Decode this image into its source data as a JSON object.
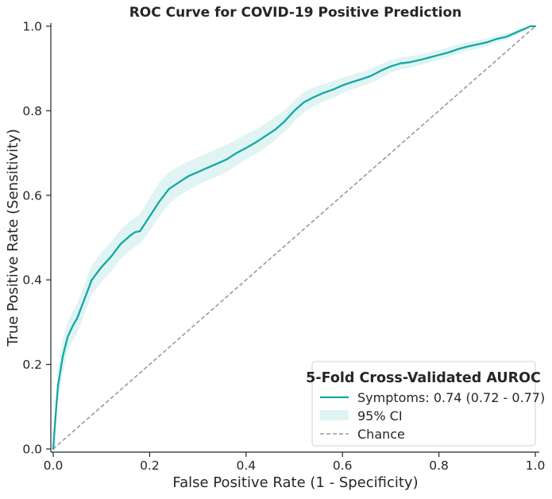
{
  "chart_data": {
    "type": "line",
    "title": "ROC Curve for COVID-19 Positive Prediction",
    "xlabel": "False Positive Rate (1 - Specificity)",
    "ylabel": "True Positive Rate (Sensitivity)",
    "xlim": [
      0.0,
      1.0
    ],
    "ylim": [
      0.0,
      1.0
    ],
    "xticks": [
      "0.0",
      "0.2",
      "0.4",
      "0.6",
      "0.8",
      "1.0"
    ],
    "yticks": [
      "0.0",
      "0.2",
      "0.4",
      "0.6",
      "0.8",
      "1.0"
    ],
    "grid": false,
    "legend": {
      "title": "5-Fold Cross-Validated AUROC",
      "placement": "lower-right",
      "entries": [
        "Symptoms: 0.74 (0.72 - 0.77)",
        "95% CI",
        "Chance"
      ]
    },
    "colors": {
      "roc_line": "#13a8a4",
      "ci_band": "#13a8a4",
      "chance_line": "#999999"
    },
    "series": [
      {
        "name": "Symptoms: 0.74 (0.72 - 0.77)",
        "x": [
          0.0,
          0.005,
          0.01,
          0.02,
          0.03,
          0.04,
          0.05,
          0.06,
          0.07,
          0.08,
          0.1,
          0.12,
          0.14,
          0.16,
          0.17,
          0.18,
          0.2,
          0.22,
          0.24,
          0.26,
          0.28,
          0.3,
          0.32,
          0.34,
          0.36,
          0.38,
          0.4,
          0.42,
          0.44,
          0.46,
          0.48,
          0.5,
          0.52,
          0.54,
          0.56,
          0.58,
          0.6,
          0.62,
          0.64,
          0.66,
          0.68,
          0.7,
          0.72,
          0.74,
          0.76,
          0.78,
          0.8,
          0.82,
          0.84,
          0.86,
          0.88,
          0.9,
          0.92,
          0.94,
          0.96,
          0.98,
          0.99,
          1.0
        ],
        "y": [
          0.0,
          0.08,
          0.15,
          0.22,
          0.265,
          0.29,
          0.31,
          0.34,
          0.37,
          0.4,
          0.43,
          0.455,
          0.485,
          0.505,
          0.513,
          0.515,
          0.55,
          0.585,
          0.615,
          0.63,
          0.645,
          0.655,
          0.665,
          0.675,
          0.685,
          0.7,
          0.712,
          0.725,
          0.74,
          0.755,
          0.775,
          0.8,
          0.82,
          0.832,
          0.842,
          0.85,
          0.86,
          0.868,
          0.875,
          0.883,
          0.895,
          0.905,
          0.912,
          0.915,
          0.92,
          0.926,
          0.932,
          0.938,
          0.946,
          0.952,
          0.957,
          0.962,
          0.97,
          0.975,
          0.985,
          0.995,
          1.0,
          1.0
        ]
      }
    ],
    "ci_band": {
      "name": "95% CI",
      "x": [
        0.0,
        0.005,
        0.01,
        0.02,
        0.03,
        0.04,
        0.05,
        0.06,
        0.07,
        0.08,
        0.1,
        0.12,
        0.14,
        0.16,
        0.17,
        0.18,
        0.2,
        0.22,
        0.24,
        0.26,
        0.28,
        0.3,
        0.32,
        0.34,
        0.36,
        0.38,
        0.4,
        0.42,
        0.44,
        0.46,
        0.48,
        0.5,
        0.52,
        0.54,
        0.56,
        0.58,
        0.6,
        0.62,
        0.64,
        0.66,
        0.68,
        0.7,
        0.72,
        0.74,
        0.76,
        0.78,
        0.8,
        0.82,
        0.84,
        0.86,
        0.88,
        0.9,
        0.92,
        0.94,
        0.96,
        0.98,
        0.99,
        1.0
      ],
      "lower": [
        0.0,
        0.05,
        0.11,
        0.18,
        0.23,
        0.255,
        0.275,
        0.305,
        0.335,
        0.365,
        0.395,
        0.42,
        0.45,
        0.47,
        0.48,
        0.485,
        0.515,
        0.55,
        0.58,
        0.598,
        0.612,
        0.625,
        0.635,
        0.645,
        0.655,
        0.67,
        0.685,
        0.698,
        0.713,
        0.73,
        0.75,
        0.775,
        0.797,
        0.81,
        0.822,
        0.83,
        0.842,
        0.85,
        0.858,
        0.866,
        0.878,
        0.89,
        0.898,
        0.902,
        0.908,
        0.914,
        0.92,
        0.927,
        0.935,
        0.942,
        0.947,
        0.953,
        0.962,
        0.968,
        0.979,
        0.992,
        0.998,
        1.0
      ],
      "upper": [
        0.0,
        0.11,
        0.19,
        0.26,
        0.3,
        0.325,
        0.345,
        0.375,
        0.405,
        0.435,
        0.465,
        0.49,
        0.52,
        0.54,
        0.548,
        0.555,
        0.595,
        0.63,
        0.655,
        0.668,
        0.68,
        0.69,
        0.7,
        0.71,
        0.72,
        0.732,
        0.745,
        0.755,
        0.77,
        0.785,
        0.8,
        0.825,
        0.845,
        0.855,
        0.863,
        0.87,
        0.878,
        0.885,
        0.892,
        0.9,
        0.91,
        0.92,
        0.926,
        0.929,
        0.933,
        0.938,
        0.944,
        0.95,
        0.957,
        0.962,
        0.967,
        0.971,
        0.978,
        0.983,
        0.991,
        0.998,
        1.0,
        1.0
      ]
    },
    "chance_line": {
      "name": "Chance",
      "x": [
        0.0,
        1.0
      ],
      "y": [
        0.0,
        1.0
      ]
    }
  }
}
